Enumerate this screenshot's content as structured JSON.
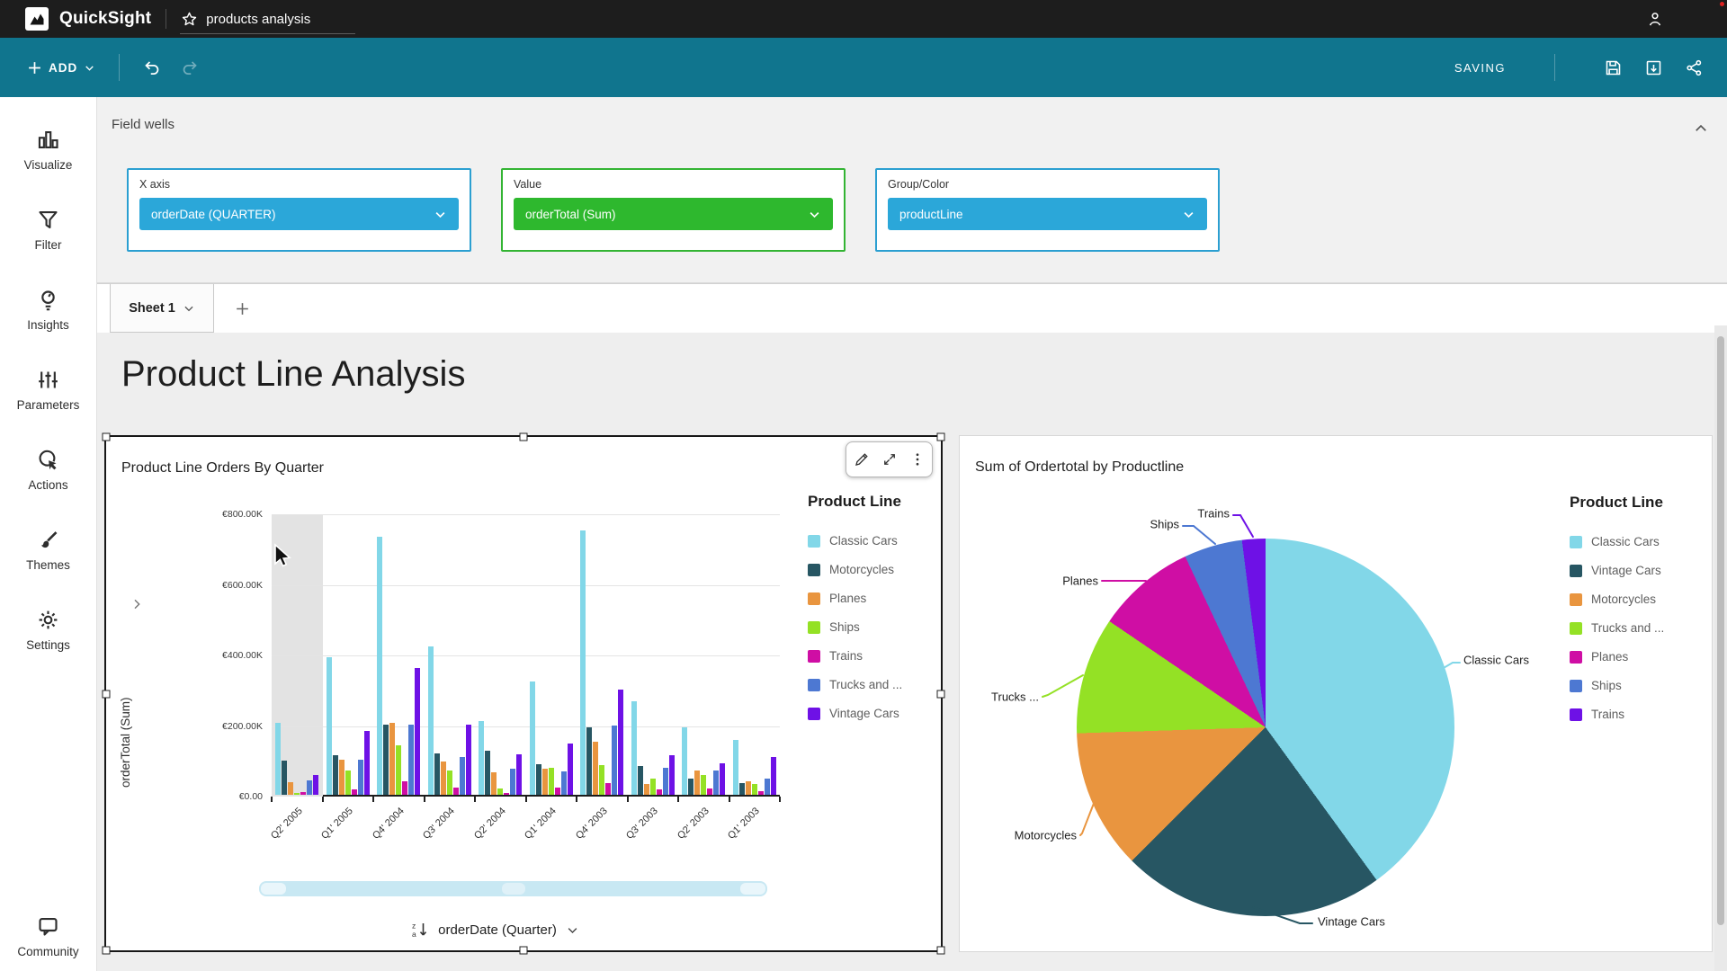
{
  "topbar": {
    "brand": "QuickSight",
    "doc_title": "products analysis"
  },
  "toolbar": {
    "add_label": "ADD",
    "saving_label": "SAVING"
  },
  "colors": {
    "top_bar": "#1d1d1d",
    "action_bar": "#10758e",
    "pill_blue": "#2ba7d9",
    "pill_green": "#2eb82e",
    "well_border_blue": "#2b9fd1",
    "well_border_green": "#33b433",
    "selection_border": "#171717",
    "hover_band": "#e3e3e3",
    "scrollbar_blue": "#c8e8f3"
  },
  "sidebar": {
    "items": [
      {
        "label": "Visualize",
        "icon": "bar-chart-icon"
      },
      {
        "label": "Filter",
        "icon": "funnel-icon"
      },
      {
        "label": "Insights",
        "icon": "lightbulb-icon"
      },
      {
        "label": "Parameters",
        "icon": "sliders-icon"
      },
      {
        "label": "Actions",
        "icon": "cursor-click-icon"
      },
      {
        "label": "Themes",
        "icon": "paintbrush-icon"
      },
      {
        "label": "Settings",
        "icon": "gear-icon"
      },
      {
        "label": "Community",
        "icon": "chat-bubble-icon"
      }
    ]
  },
  "field_wells": {
    "panel_title": "Field wells",
    "wells": [
      {
        "label": "X axis",
        "value": "orderDate (QUARTER)",
        "pill_color": "#2ba7d9",
        "border_color": "#2b9fd1"
      },
      {
        "label": "Value",
        "value": "orderTotal (Sum)",
        "pill_color": "#2eb82e",
        "border_color": "#33b433"
      },
      {
        "label": "Group/Color",
        "value": "productLine",
        "pill_color": "#2ba7d9",
        "border_color": "#2b9fd1"
      }
    ]
  },
  "sheet": {
    "tab_label": "Sheet 1",
    "page_title": "Product Line Analysis"
  },
  "chart_data": [
    {
      "type": "bar",
      "title": "Product Line Orders By Quarter",
      "legend_title": "Product Line",
      "legend_position": "right",
      "xlabel": "orderDate (Quarter)",
      "ylabel": "orderTotal (Sum)",
      "grid": true,
      "ylim": [
        0,
        800000
      ],
      "y_ticks": [
        "€800.00K",
        "€600.00K",
        "€400.00K",
        "€200.00K",
        "€0.00"
      ],
      "y_tick_values": [
        800000,
        600000,
        400000,
        200000,
        0
      ],
      "categories": [
        "Q2' 2005",
        "Q1' 2005",
        "Q4' 2004",
        "Q3' 2004",
        "Q2' 2004",
        "Q1' 2004",
        "Q4' 2003",
        "Q3' 2003",
        "Q2' 2003",
        "Q1' 2003"
      ],
      "highlighted_category": "Q2' 2005",
      "series": [
        {
          "name": "Classic Cars",
          "color": "#82d7e8",
          "values": [
            205000,
            390000,
            730000,
            420000,
            210000,
            320000,
            750000,
            265000,
            190000,
            155000
          ]
        },
        {
          "name": "Motorcycles",
          "color": "#275663",
          "values": [
            97000,
            112000,
            200000,
            117000,
            125000,
            86000,
            190000,
            82000,
            45000,
            34000
          ]
        },
        {
          "name": "Planes",
          "color": "#e9953f",
          "values": [
            35000,
            100000,
            205000,
            94000,
            65000,
            73000,
            150000,
            30000,
            70000,
            39000
          ]
        },
        {
          "name": "Ships",
          "color": "#94e125",
          "values": [
            5000,
            70000,
            140000,
            68000,
            19000,
            77000,
            84000,
            47000,
            56000,
            30000
          ]
        },
        {
          "name": "Trains",
          "color": "#cf0ea4",
          "values": [
            8000,
            16000,
            39000,
            21000,
            5000,
            21000,
            33000,
            15000,
            17000,
            9000
          ]
        },
        {
          "name": "Trucks and ...",
          "color": "#4d78d2",
          "values": [
            42000,
            100000,
            200000,
            107000,
            74000,
            67000,
            196000,
            76000,
            69000,
            47000
          ]
        },
        {
          "name": "Vintage Cars",
          "color": "#6e11e6",
          "values": [
            57000,
            180000,
            360000,
            200000,
            115000,
            144000,
            299000,
            112000,
            88000,
            106000
          ]
        }
      ]
    },
    {
      "type": "pie",
      "title": "Sum of Ordertotal by Productline",
      "legend_title": "Product Line",
      "legend_position": "right",
      "slices": [
        {
          "label": "Classic Cars",
          "callout": "Classic Cars",
          "pct": 40.0,
          "color": "#82d7e8"
        },
        {
          "label": "Vintage Cars",
          "callout": "Vintage Cars",
          "pct": 22.5,
          "color": "#275663"
        },
        {
          "label": "Motorcycles",
          "callout": "Motorcycles",
          "pct": 12.0,
          "color": "#e9953f"
        },
        {
          "label": "Trucks and ...",
          "callout": "Trucks ...",
          "pct": 10.0,
          "color": "#94e125"
        },
        {
          "label": "Planes",
          "callout": "Planes",
          "pct": 8.5,
          "color": "#cf0ea4"
        },
        {
          "label": "Ships",
          "callout": "Ships",
          "pct": 5.0,
          "color": "#4d78d2"
        },
        {
          "label": "Trains",
          "callout": "Trains",
          "pct": 2.0,
          "color": "#6e11e6"
        }
      ]
    }
  ]
}
